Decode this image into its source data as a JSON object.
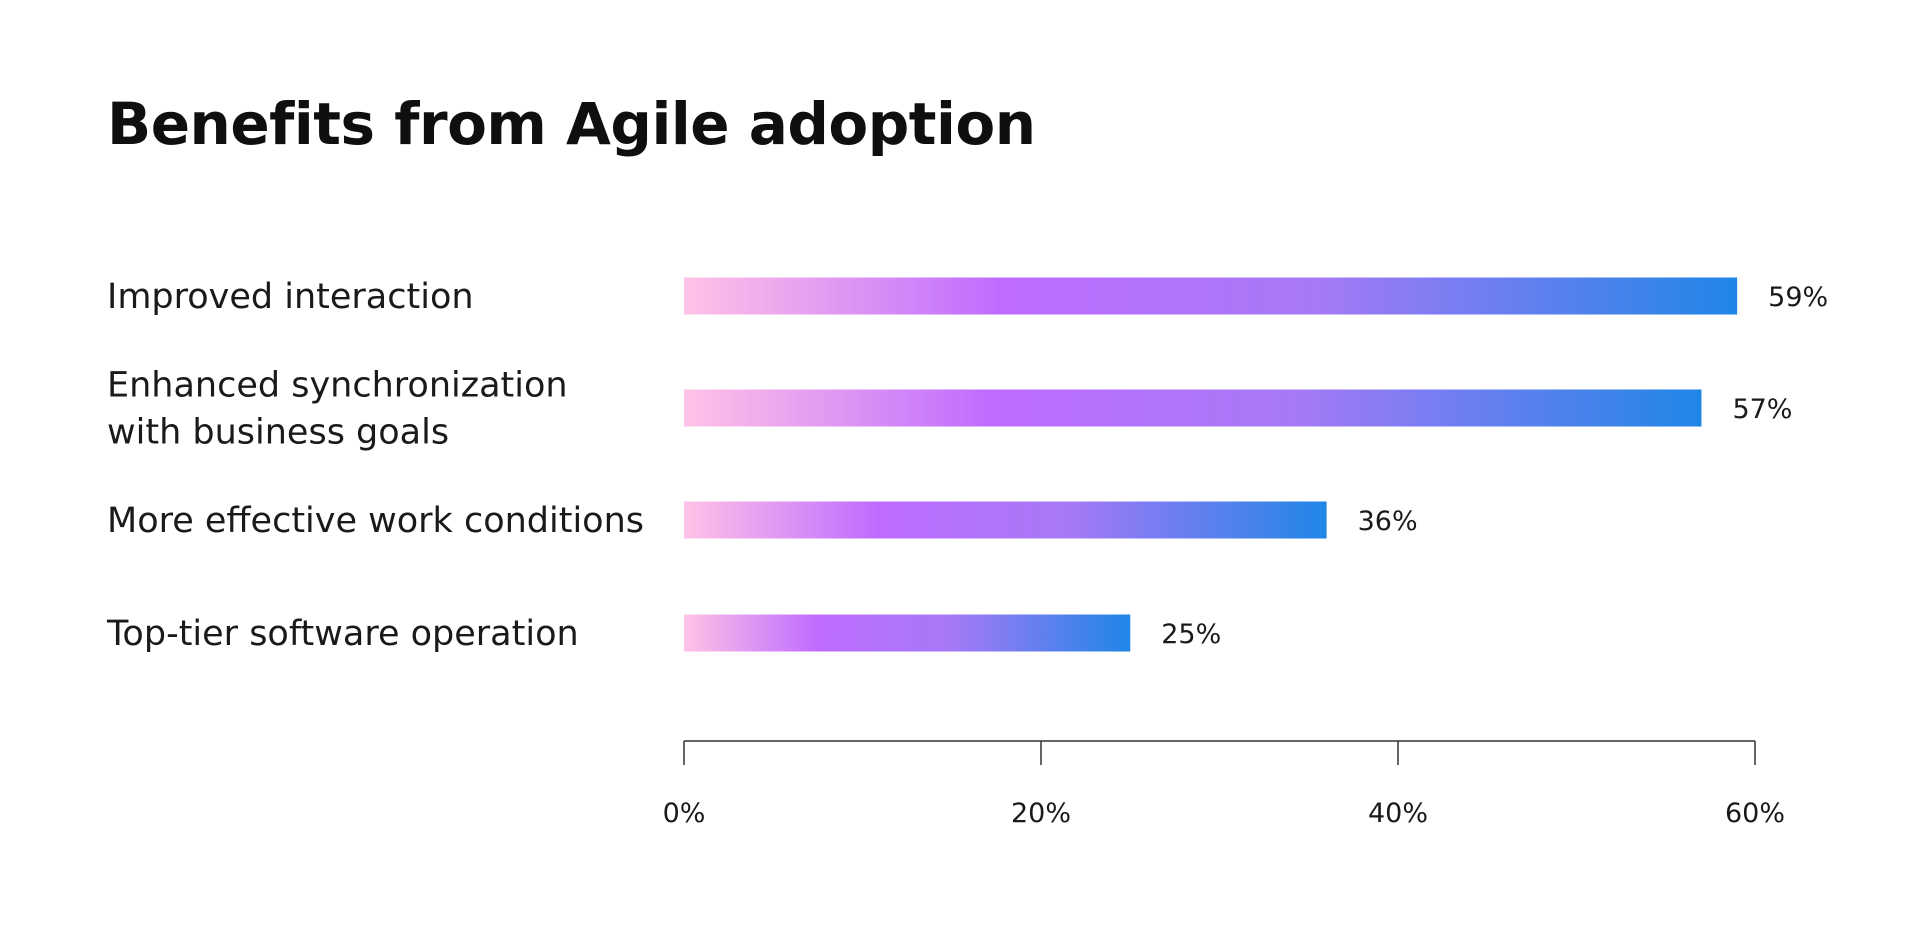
{
  "chart_data": {
    "type": "bar",
    "orientation": "horizontal",
    "title": "Benefits from Agile adoption",
    "categories": [
      [
        "Improved interaction"
      ],
      [
        "Enhanced synchronization",
        "with business goals"
      ],
      [
        "More effective work conditions"
      ],
      [
        "Top-tier software operation"
      ]
    ],
    "values": [
      59,
      57,
      36,
      25
    ],
    "value_labels": [
      "59%",
      "57%",
      "36%",
      "25%"
    ],
    "xlim": [
      0,
      60
    ],
    "xticks": [
      0,
      20,
      40,
      60
    ],
    "xtick_labels": [
      "0%",
      "20%",
      "40%",
      "60%"
    ],
    "xlabel": "",
    "ylabel": "",
    "grid": false,
    "legend": "none",
    "colors": {
      "gradient_start": "#ffc3e6",
      "gradient_mid": "#be6cff",
      "gradient_end": "#1f86e6",
      "axis": "#333333",
      "text": "#1a1a1a"
    }
  }
}
